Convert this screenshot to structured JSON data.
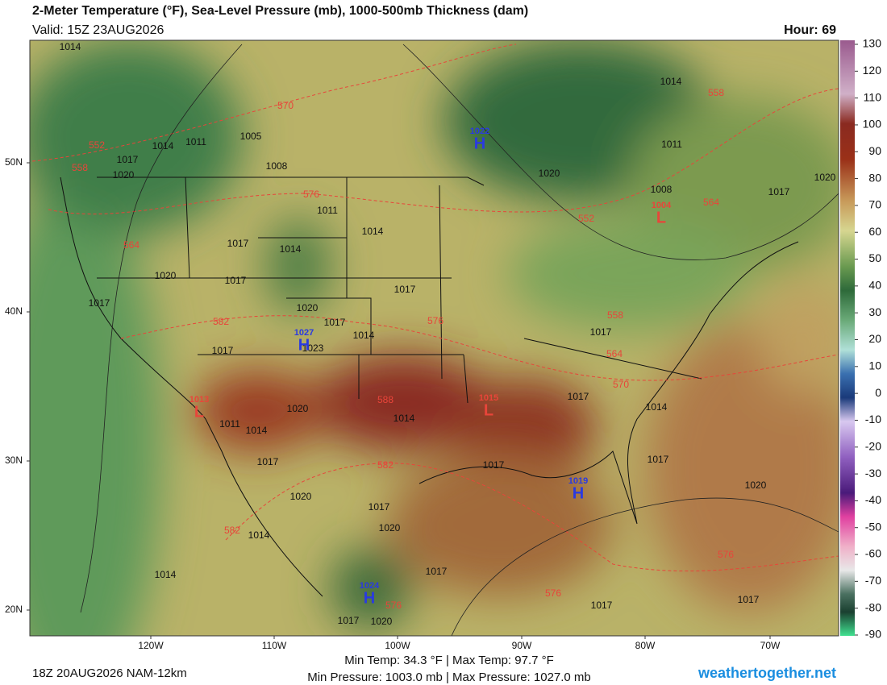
{
  "header": {
    "title": "2-Meter Temperature (°F), Sea-Level Pressure (mb), 1000-500mb Thickness (dam)",
    "valid": "Valid: 15Z 23AUG2026",
    "hour": "Hour: 69"
  },
  "colorbar": {
    "lim": [
      -90,
      130
    ],
    "ticks": [
      130,
      120,
      110,
      100,
      90,
      80,
      70,
      60,
      50,
      40,
      30,
      20,
      10,
      0,
      -10,
      -20,
      -30,
      -40,
      -50,
      -60,
      -70,
      -80,
      -90
    ]
  },
  "latitude_labels": [
    "50N",
    "40N",
    "30N",
    "20N"
  ],
  "longitude_labels": [
    "120W",
    "110W",
    "100W",
    "90W",
    "80W",
    "70W"
  ],
  "isobar_labels": [
    "1014",
    "1014",
    "1011",
    "1005",
    "1017",
    "1020",
    "1008",
    "1014",
    "1011",
    "1020",
    "1008",
    "1020",
    "1017",
    "1011",
    "1014",
    "1017",
    "1014",
    "1020",
    "1017",
    "1017",
    "1017",
    "1020",
    "1017",
    "1014",
    "1017",
    "1023",
    "1017",
    "1011",
    "1014",
    "1020",
    "1014",
    "1017",
    "1014",
    "1017",
    "1017",
    "1017",
    "1020",
    "1017",
    "1020",
    "1020",
    "1014",
    "1014",
    "1017",
    "1017",
    "1017",
    "1017",
    "1020"
  ],
  "thickness_labels": [
    "570",
    "552",
    "558",
    "576",
    "564",
    "582",
    "576",
    "588",
    "582",
    "582",
    "576",
    "558",
    "564",
    "552",
    "558",
    "564",
    "570",
    "576",
    "576"
  ],
  "pressure_centers": [
    {
      "letter": "H",
      "pressure": "1022"
    },
    {
      "letter": "L",
      "pressure": "1004"
    },
    {
      "letter": "H",
      "pressure": "1027"
    },
    {
      "letter": "L",
      "pressure": "1013"
    },
    {
      "letter": "L",
      "pressure": "1015"
    },
    {
      "letter": "H",
      "pressure": "1019"
    },
    {
      "letter": "H",
      "pressure": "1024"
    }
  ],
  "footer": {
    "run": "18Z 20AUG2026 NAM-12km",
    "temps": "Min Temp:  34.3 °F | Max Temp:  97.7 °F",
    "pressures": "Min Pressure: 1003.0 mb | Max Pressure: 1027.0 mb",
    "site": "weathertogether.net"
  }
}
